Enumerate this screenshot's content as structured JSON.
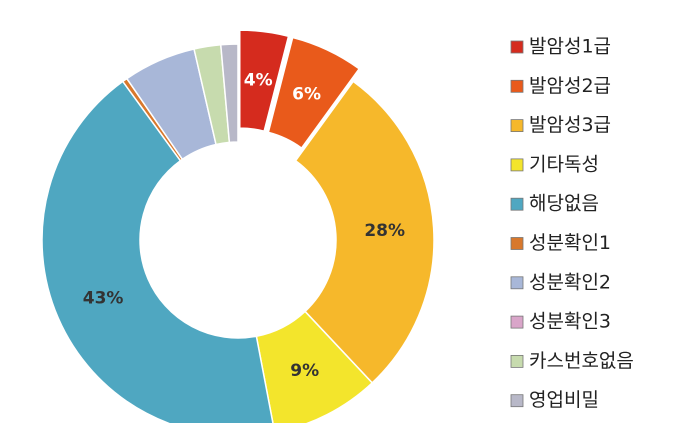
{
  "chart_data": {
    "type": "donut",
    "categories": [
      "발암성1급",
      "발암성2급",
      "발암성3급",
      "기타독성",
      "해당없음",
      "성분확인1",
      "성분확인2",
      "성분확인3",
      "카스번호없음",
      "영업비밀"
    ],
    "values": [
      4,
      6,
      28,
      9,
      43,
      0.4,
      6,
      0,
      2.2,
      1.4
    ],
    "value_labels": [
      "4%",
      "6%",
      "28%",
      "9%",
      "43%",
      null,
      null,
      null,
      null,
      null
    ],
    "colors": [
      "#d52b1e",
      "#e95a1b",
      "#f6b82b",
      "#f3e52c",
      "#4fa7c1",
      "#d8782c",
      "#a8b7d8",
      "#d9a5c9",
      "#c7dbae",
      "#b8b8c8"
    ],
    "exploded": [
      true,
      true,
      false,
      false,
      false,
      false,
      false,
      false,
      false,
      false
    ],
    "legend": "right"
  }
}
